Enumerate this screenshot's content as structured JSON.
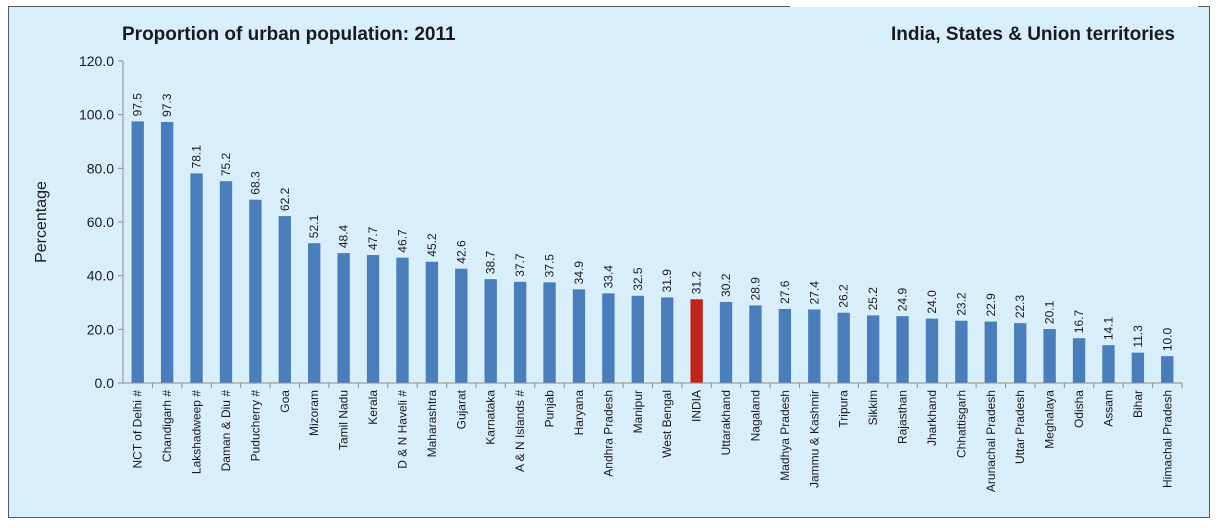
{
  "chart_data": {
    "type": "bar",
    "title": "Proportion of urban population: 2011",
    "subtitle": "India, States & Union territories",
    "ylabel": "Percentage",
    "xlabel": "",
    "ylim": [
      0,
      120
    ],
    "yticks": [
      "0.0",
      "20.0",
      "40.0",
      "60.0",
      "80.0",
      "100.0",
      "120.0"
    ],
    "grid": false,
    "legend": "none",
    "colors": {
      "bar": "#4a7ebb",
      "highlight": "#c0241c",
      "axis": "#8c8c8c"
    },
    "highlight_category": "INDIA",
    "categories": [
      "NCT of Delhi #",
      "Chandigarh #",
      "Lakshadweep #",
      "Daman & Diu #",
      "Puducherry #",
      "Goa",
      "Mizoram",
      "Tamil Nadu",
      "Kerala",
      "D & N Haveli #",
      "Maharashtra",
      "Gujarat",
      "Karnataka",
      "A & N Islands #",
      "Punjab",
      "Haryana",
      "Andhra Pradesh",
      "Manipur",
      "West Bengal",
      "INDIA",
      "Uttarakhand",
      "Nagaland",
      "Madhya Pradesh",
      "Jammu & Kashmir",
      "Tripura",
      "Sikkim",
      "Rajasthan",
      "Jharkhand",
      "Chhattisgarh",
      "Arunachal Pradesh",
      "Uttar Pradesh",
      "Meghalaya",
      "Odisha",
      "Assam",
      "Bihar",
      "Himachal Pradesh"
    ],
    "values": [
      97.5,
      97.3,
      78.1,
      75.2,
      68.3,
      62.2,
      52.1,
      48.4,
      47.7,
      46.7,
      45.2,
      42.6,
      38.7,
      37.7,
      37.5,
      34.9,
      33.4,
      32.5,
      31.9,
      31.2,
      30.2,
      28.9,
      27.6,
      27.4,
      26.2,
      25.2,
      24.9,
      24.0,
      23.2,
      22.9,
      22.3,
      20.1,
      16.7,
      14.1,
      11.3,
      10.0
    ]
  }
}
